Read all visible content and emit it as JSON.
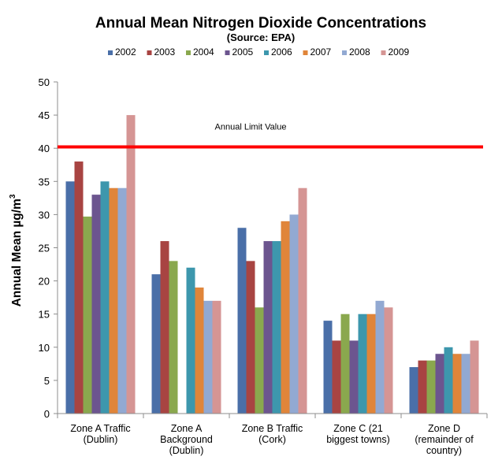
{
  "chart_data": {
    "type": "bar",
    "title": "Annual Mean Nitrogen Dioxide Concentrations",
    "subtitle": "(Source: EPA)",
    "xlabel": "",
    "ylabel": "Annual Mean µg/m³",
    "ylabel_main": "Annual Mean µg/m",
    "ylabel_sup": "3",
    "ylim": [
      0,
      50
    ],
    "yticks": [
      0,
      5,
      10,
      15,
      20,
      25,
      30,
      35,
      40,
      45,
      50
    ],
    "grid": false,
    "legend_position": "top",
    "categories": [
      [
        "Zone A Traffic",
        "(Dublin)"
      ],
      [
        "Zone A",
        "Background",
        "(Dublin)"
      ],
      [
        "Zone B Traffic",
        "(Cork)"
      ],
      [
        "Zone C (21",
        "biggest towns)"
      ],
      [
        "Zone D",
        "(remainder of",
        "country)"
      ]
    ],
    "series": [
      {
        "name": "2002",
        "color": "#4a6fa8",
        "values": [
          35,
          21,
          28,
          14,
          7
        ]
      },
      {
        "name": "2003",
        "color": "#a84442",
        "values": [
          38,
          26,
          23,
          11,
          8
        ]
      },
      {
        "name": "2004",
        "color": "#8aa84e",
        "values": [
          29.7,
          23,
          16,
          15,
          8
        ]
      },
      {
        "name": "2005",
        "color": "#6c558f",
        "values": [
          33,
          null,
          26,
          11,
          9
        ]
      },
      {
        "name": "2006",
        "color": "#3d97ad",
        "values": [
          35,
          22,
          26,
          15,
          10
        ]
      },
      {
        "name": "2007",
        "color": "#e0853a",
        "values": [
          34,
          19,
          29,
          15,
          9
        ]
      },
      {
        "name": "2008",
        "color": "#92a9d2",
        "values": [
          34,
          17,
          30,
          17,
          9
        ]
      },
      {
        "name": "2009",
        "color": "#d59594",
        "values": [
          45,
          17,
          34,
          16,
          11
        ]
      }
    ],
    "reference_line": {
      "label": "Annual Limit Value",
      "value": 40.2,
      "color": "#ff0000"
    }
  }
}
